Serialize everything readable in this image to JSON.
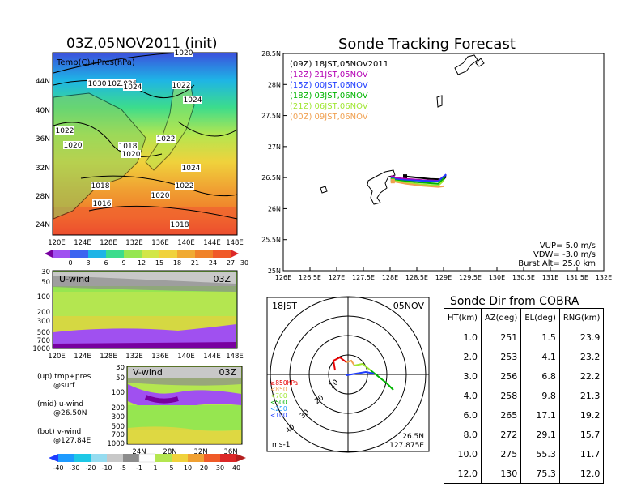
{
  "left_top": {
    "title": "03Z,05NOV2011 (init)",
    "label": "Temp(C)+Pres(hPa)",
    "yticks": [
      "44N",
      "40N",
      "36N",
      "32N",
      "28N",
      "24N"
    ],
    "xticks": [
      "120E",
      "124E",
      "128E",
      "132E",
      "136E",
      "140E",
      "144E",
      "148E"
    ],
    "isobars": [
      "1020",
      "1030",
      "1028",
      "1026",
      "1024",
      "1022",
      "1022",
      "1024",
      "1022",
      "1020",
      "1018",
      "1020",
      "1022",
      "1024",
      "1018",
      "1022",
      "1020",
      "1016",
      "1018"
    ],
    "colorbar": [
      "0",
      "3",
      "6",
      "9",
      "12",
      "15",
      "18",
      "21",
      "24",
      "27",
      "30"
    ]
  },
  "left_mid": {
    "label": "U-wind",
    "time": "03Z",
    "yticks": [
      "30",
      "50",
      "100",
      "200",
      "300",
      "500",
      "700",
      "1000"
    ],
    "xticks": [
      "120E",
      "124E",
      "128E",
      "132E",
      "136E",
      "140E",
      "144E",
      "148E"
    ]
  },
  "left_bot": {
    "label": "V-wind",
    "time": "03Z",
    "yticks": [
      "30",
      "50",
      "100",
      "200",
      "300",
      "500",
      "700",
      "1000"
    ],
    "xticks": [
      "24N",
      "28N",
      "32N",
      "36N"
    ],
    "colorbar": [
      "-40",
      "-30",
      "-20",
      "-10",
      "-5",
      "-1",
      "1",
      "5",
      "10",
      "20",
      "30",
      "40"
    ]
  },
  "legend_notes": [
    {
      "a": "(up) tmp+pres",
      "b": "@surf"
    },
    {
      "a": "(mid) u-wind",
      "b": "@26.50N"
    },
    {
      "a": "(bot) v-wind",
      "b": "@127.84E"
    }
  ],
  "chart_data": {
    "type": "line",
    "title": "Sonde Tracking Forecast",
    "xticks": [
      "126E",
      "126.5E",
      "127E",
      "127.5E",
      "128E",
      "128.5E",
      "129E",
      "129.5E",
      "130E",
      "130.5E",
      "131E",
      "131.5E",
      "132E"
    ],
    "yticks": [
      "28.5N",
      "28N",
      "27.5N",
      "27N",
      "26.5N",
      "26N",
      "25.5N",
      "25N"
    ],
    "xlim": [
      126,
      132
    ],
    "ylim": [
      25,
      28.5
    ],
    "series": [
      {
        "name": "(09Z)  18JST,05NOV2011",
        "color": "#000000",
        "x": [
          128.28,
          128.5,
          128.75,
          129.0,
          129.05
        ],
        "y": [
          26.52,
          26.5,
          26.48,
          26.47,
          26.52
        ]
      },
      {
        "name": "(12Z)  21JST,05NOV",
        "color": "#b400b4",
        "x": [
          128.05,
          128.3,
          128.6,
          128.9,
          129.05
        ],
        "y": [
          26.5,
          26.48,
          26.46,
          26.45,
          26.55
        ]
      },
      {
        "name": "(15Z)  00JST,06NOV",
        "color": "#1e3cff",
        "x": [
          128.05,
          128.3,
          128.6,
          128.9,
          129.05
        ],
        "y": [
          26.48,
          26.46,
          26.45,
          26.44,
          26.55
        ]
      },
      {
        "name": "(18Z)  03JST,06NOV",
        "color": "#00b400",
        "x": [
          128.05,
          128.3,
          128.6,
          128.9,
          129.02
        ],
        "y": [
          26.46,
          26.44,
          26.42,
          26.4,
          26.5
        ]
      },
      {
        "name": "(21Z)  06JST,06NOV",
        "color": "#a0e632",
        "x": [
          128.05,
          128.3,
          128.6,
          128.9,
          129.0
        ],
        "y": [
          26.45,
          26.42,
          26.39,
          26.37,
          26.45
        ]
      },
      {
        "name": "(00Z)  09JST,06NOV",
        "color": "#f0a050",
        "x": [
          128.05,
          128.3,
          128.6,
          128.9,
          129.0
        ],
        "y": [
          26.44,
          26.4,
          26.37,
          26.35,
          26.36
        ]
      }
    ],
    "notes": [
      "VUP=  5.0  m/s",
      "VDW= -3.0  m/s",
      "Burst Alt=  25.0  km"
    ]
  },
  "polar": {
    "time": "18JST",
    "date": "05NOV",
    "levels": [
      "≥850hPa",
      "<850",
      "<700",
      "<500",
      "<250",
      "<100"
    ],
    "level_colors": [
      "#e60000",
      "#f0a050",
      "#a0e632",
      "#00b400",
      "#1e9bff",
      "#1e3cff"
    ],
    "rings": [
      "10",
      "20",
      "30",
      "40"
    ],
    "unit": "ms-1",
    "lat": "26.5N",
    "lon": "127.875E"
  },
  "sonde_table": {
    "title": "Sonde Dir from COBRA",
    "headers": [
      "HT(km)",
      "AZ(deg)",
      "EL(deg)",
      "RNG(km)"
    ],
    "rows": [
      [
        "1.0",
        "251",
        "1.5",
        "23.9"
      ],
      [
        "2.0",
        "253",
        "4.1",
        "23.2"
      ],
      [
        "3.0",
        "256",
        "6.8",
        "22.2"
      ],
      [
        "4.0",
        "258",
        "9.8",
        "21.3"
      ],
      [
        "6.0",
        "265",
        "17.1",
        "19.2"
      ],
      [
        "8.0",
        "272",
        "29.1",
        "15.7"
      ],
      [
        "10.0",
        "275",
        "55.3",
        "11.7"
      ],
      [
        "12.0",
        "130",
        "75.3",
        "12.0"
      ]
    ]
  }
}
